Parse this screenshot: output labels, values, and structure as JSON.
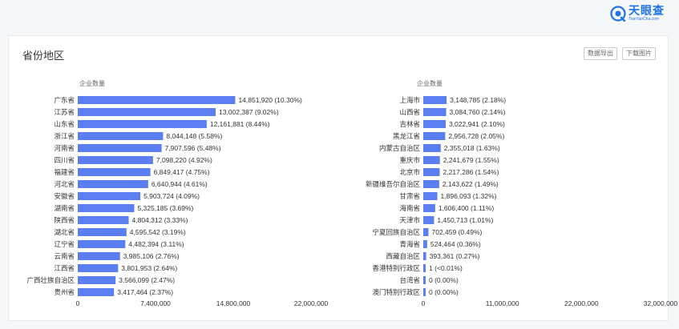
{
  "header": {
    "brand_name": "天眼查",
    "brand_sub": "TianYanCha.com"
  },
  "card": {
    "title": "省份地区",
    "export_label": "数据导出",
    "download_label": "下载图片"
  },
  "colors": {
    "bar": "#5b7ff0",
    "brand": "#1e73e8"
  },
  "chart_data": [
    {
      "type": "bar",
      "orientation": "horizontal",
      "ylabel": "企业数量",
      "xlim": [
        0,
        22000000
      ],
      "xticks": [
        "0",
        "7,400,000",
        "14,800,000",
        "22,000,000"
      ],
      "categories": [
        "广东省",
        "江苏省",
        "山东省",
        "浙江省",
        "河南省",
        "四川省",
        "福建省",
        "河北省",
        "安徽省",
        "湖南省",
        "陕西省",
        "湖北省",
        "辽宁省",
        "云南省",
        "江西省",
        "广西壮族自治区",
        "贵州省"
      ],
      "values": [
        14851920,
        13002387,
        12161881,
        8044148,
        7907596,
        7098220,
        6849417,
        6640944,
        5903724,
        5325185,
        4804312,
        4595542,
        4482394,
        3985106,
        3801953,
        3566099,
        3417464
      ],
      "labels": [
        "14,851,920 (10.30%)",
        "13,002,387 (9.02%)",
        "12,161,881 (8.44%)",
        "8,044,148 (5.58%)",
        "7,907,596 (5.48%)",
        "7,098,220 (4.92%)",
        "6,849,417 (4.75%)",
        "6,640,944 (4.61%)",
        "5,903,724 (4.09%)",
        "5,325,185 (3.69%)",
        "4,804,312 (3.33%)",
        "4,595,542 (3.19%)",
        "4,482,394 (3.11%)",
        "3,985,106 (2.76%)",
        "3,801,953 (2.64%)",
        "3,566,099 (2.47%)",
        "3,417,464 (2.37%)"
      ]
    },
    {
      "type": "bar",
      "orientation": "horizontal",
      "ylabel": "企业数量",
      "xlim": [
        0,
        32000000
      ],
      "xticks": [
        "0",
        "11,000,000",
        "22,000,000",
        "32,000,000"
      ],
      "categories": [
        "上海市",
        "山西省",
        "吉林省",
        "黑龙江省",
        "内蒙古自治区",
        "重庆市",
        "北京市",
        "新疆维吾尔自治区",
        "甘肃省",
        "海南省",
        "天津市",
        "宁夏回族自治区",
        "青海省",
        "西藏自治区",
        "香港特别行政区",
        "台湾省",
        "澳门特别行政区"
      ],
      "values": [
        3148785,
        3084760,
        3022941,
        2956728,
        2355018,
        2241679,
        2217286,
        2143622,
        1896093,
        1606400,
        1450713,
        702459,
        524464,
        393361,
        1,
        0,
        0
      ],
      "labels": [
        "3,148,785 (2.18%)",
        "3,084,760 (2.14%)",
        "3,022,941 (2.10%)",
        "2,956,728 (2.05%)",
        "2,355,018 (1.63%)",
        "2,241,679 (1.55%)",
        "2,217,286 (1.54%)",
        "2,143,622 (1.49%)",
        "1,896,093 (1.32%)",
        "1,606,400 (1.11%)",
        "1,450,713 (1.01%)",
        "702,459 (0.49%)",
        "524,464 (0.36%)",
        "393,361 (0.27%)",
        "1 (<0.01%)",
        "0 (0.00%)",
        "0 (0.00%)"
      ]
    }
  ]
}
